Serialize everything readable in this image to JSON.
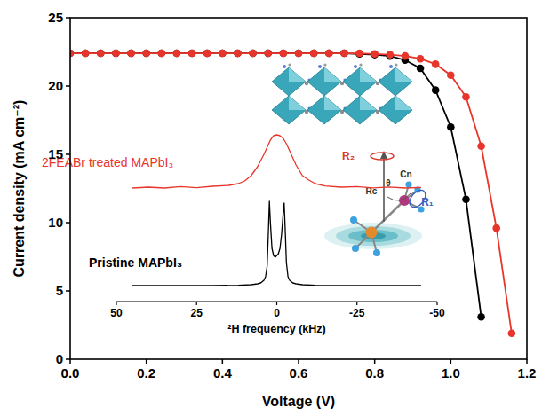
{
  "chart_data": [
    {
      "type": "line",
      "x_label": "Voltage (V)",
      "y_label": "Current density (mA cm⁻²)",
      "xlim": [
        0,
        1.2
      ],
      "ylim": [
        0,
        25
      ],
      "xticks": [
        {
          "value": 0,
          "label": "0.0"
        },
        0.2,
        0.4,
        0.6,
        0.8,
        {
          "value": 1,
          "label": "1.0"
        },
        1.2
      ],
      "yticks": [
        0,
        5,
        10,
        15,
        20,
        25
      ],
      "marker": "circle",
      "series": [
        {
          "color": "#000000",
          "x": [
            0,
            0.04,
            0.08,
            0.12,
            0.16,
            0.2,
            0.24,
            0.28,
            0.32,
            0.36,
            0.4,
            0.44,
            0.48,
            0.52,
            0.56,
            0.6,
            0.64,
            0.68,
            0.72,
            0.76,
            0.8,
            0.84,
            0.88,
            0.92,
            0.96,
            1.0,
            1.04,
            1.08
          ],
          "values": [
            22.4,
            22.4,
            22.4,
            22.4,
            22.4,
            22.4,
            22.4,
            22.4,
            22.4,
            22.4,
            22.4,
            22.4,
            22.4,
            22.4,
            22.4,
            22.4,
            22.4,
            22.4,
            22.4,
            22.35,
            22.3,
            22.2,
            21.9,
            21.3,
            19.7,
            17.0,
            11.7,
            3.1
          ]
        },
        {
          "color": "#e8352b",
          "x": [
            0,
            0.04,
            0.08,
            0.12,
            0.16,
            0.2,
            0.24,
            0.28,
            0.32,
            0.36,
            0.4,
            0.44,
            0.48,
            0.52,
            0.56,
            0.6,
            0.64,
            0.68,
            0.72,
            0.76,
            0.8,
            0.84,
            0.88,
            0.92,
            0.96,
            1.0,
            1.04,
            1.08,
            1.12,
            1.16
          ],
          "values": [
            22.4,
            22.4,
            22.4,
            22.4,
            22.4,
            22.4,
            22.4,
            22.4,
            22.4,
            22.4,
            22.4,
            22.4,
            22.4,
            22.4,
            22.4,
            22.4,
            22.4,
            22.4,
            22.4,
            22.4,
            22.35,
            22.3,
            22.2,
            22.0,
            21.6,
            20.8,
            19.2,
            15.6,
            9.6,
            1.9
          ]
        }
      ]
    },
    {
      "type": "line",
      "x_label": "²H frequency (kHz)",
      "xlim": [
        50,
        -50
      ],
      "ylim": [
        0,
        1
      ],
      "xticks": [
        50,
        25,
        0,
        -25,
        -50
      ],
      "tick_labels": "x",
      "series": [
        {
          "name": "2FEABr treated MAPbI₃",
          "color": "#e8352b",
          "x": [
            45,
            40,
            35,
            30,
            25,
            20,
            15,
            12,
            10,
            8,
            6,
            4,
            3,
            2,
            1,
            0,
            -1,
            -2,
            -3,
            -4,
            -6,
            -8,
            -10,
            -12,
            -15,
            -20,
            -25,
            -30,
            -35,
            -40,
            -45
          ],
          "values": [
            0.64,
            0.645,
            0.64,
            0.648,
            0.642,
            0.65,
            0.655,
            0.665,
            0.68,
            0.71,
            0.76,
            0.83,
            0.87,
            0.91,
            0.935,
            0.94,
            0.935,
            0.92,
            0.89,
            0.85,
            0.77,
            0.71,
            0.685,
            0.665,
            0.652,
            0.645,
            0.648,
            0.641,
            0.646,
            0.64,
            0.643
          ]
        },
        {
          "name": "Pristine MAPbI₃",
          "color": "#000000",
          "x": [
            45,
            30,
            20,
            12,
            8,
            6,
            5,
            4,
            3.5,
            3,
            2.6,
            2.3,
            2,
            1.5,
            1,
            0.5,
            0,
            -0.5,
            -1,
            -1.5,
            -2,
            -2.3,
            -2.6,
            -3,
            -3.5,
            -4,
            -5,
            -6,
            -8,
            -12,
            -20,
            -30,
            -45
          ],
          "values": [
            0.09,
            0.09,
            0.09,
            0.092,
            0.095,
            0.1,
            0.105,
            0.12,
            0.14,
            0.2,
            0.4,
            0.565,
            0.45,
            0.3,
            0.26,
            0.25,
            0.26,
            0.27,
            0.3,
            0.38,
            0.5,
            0.555,
            0.42,
            0.22,
            0.14,
            0.12,
            0.105,
            0.1,
            0.095,
            0.092,
            0.09,
            0.09,
            0.09
          ]
        }
      ],
      "annotations": [
        "R₂",
        "Rc",
        "θ",
        "Cn",
        "R₁"
      ]
    }
  ]
}
